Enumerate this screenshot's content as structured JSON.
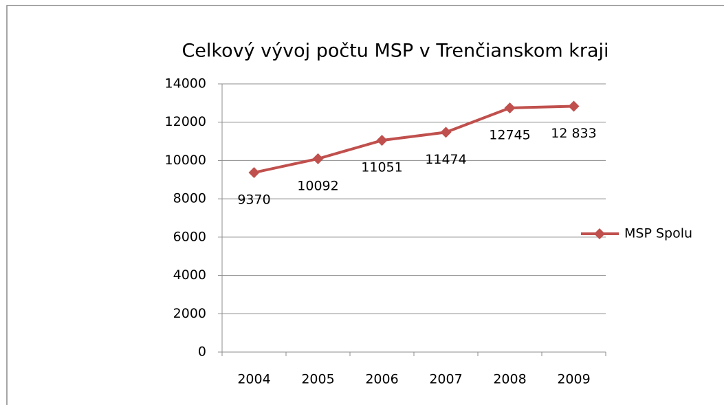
{
  "chart_data": {
    "type": "line",
    "title": "Celkový vývoj počtu MSP v Trenčianskom kraji",
    "categories": [
      "2004",
      "2005",
      "2006",
      "2007",
      "2008",
      "2009"
    ],
    "series": [
      {
        "name": "MSP Spolu",
        "color": "#c0504d",
        "values": [
          9370,
          10092,
          11051,
          11474,
          12745,
          12833
        ],
        "value_labels": [
          "9370",
          "10092",
          "11051",
          "11474",
          "12745",
          "12 833"
        ]
      }
    ],
    "ylim": [
      0,
      14000
    ],
    "yticks": [
      0,
      2000,
      4000,
      6000,
      8000,
      10000,
      12000,
      14000
    ],
    "grid": true,
    "legend": "right"
  }
}
